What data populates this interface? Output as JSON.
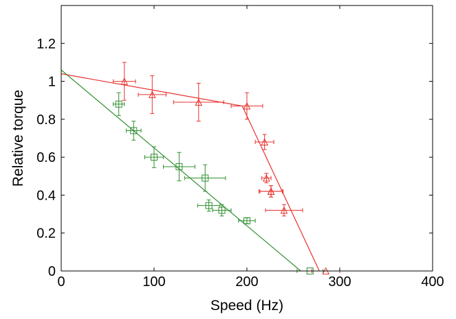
{
  "chart_data": {
    "type": "scatter",
    "title": "",
    "xlabel": "Speed (Hz)",
    "ylabel": "Relative torque",
    "xlim": [
      0,
      400
    ],
    "ylim": [
      0,
      1.4
    ],
    "x_ticks": [
      "0",
      "100",
      "200",
      "300",
      "400"
    ],
    "y_ticks": [
      "0",
      "0.2",
      "0.4",
      "0.6",
      "0.8",
      "1",
      "1.2"
    ],
    "grid": false,
    "series": [
      {
        "color": "#e8302c",
        "marker": "triangle",
        "points": [
          {
            "x": 68,
            "y": 1.0,
            "xerr": 12,
            "yerr": 0.1
          },
          {
            "x": 98,
            "y": 0.93,
            "xerr": 15,
            "yerr": 0.1
          },
          {
            "x": 148,
            "y": 0.89,
            "xerr": 27,
            "yerr": 0.1
          },
          {
            "x": 200,
            "y": 0.87,
            "xerr": 17,
            "yerr": 0.07
          },
          {
            "x": 219,
            "y": 0.68,
            "xerr": 10,
            "yerr": 0.04
          },
          {
            "x": 221,
            "y": 0.49,
            "xerr": 5,
            "yerr": 0.025
          },
          {
            "x": 226,
            "y": 0.42,
            "xerr": 13,
            "yerr": 0.03
          },
          {
            "x": 226,
            "y": 0.42,
            "xerr": 12,
            "yerr": 0.03
          },
          {
            "x": 240,
            "y": 0.32,
            "xerr": 20,
            "yerr": 0.03
          },
          {
            "x": 285,
            "y": 0.0,
            "xerr": 15,
            "yerr": 0.0
          }
        ],
        "fit_line": {
          "x": [
            0,
            195,
            278
          ],
          "y": [
            1.04,
            0.87,
            0.0
          ]
        }
      },
      {
        "color": "#2f8f2f",
        "marker": "square",
        "points": [
          {
            "x": 62,
            "y": 0.88,
            "xerr": 6,
            "yerr": 0.06
          },
          {
            "x": 78,
            "y": 0.74,
            "xerr": 8,
            "yerr": 0.05
          },
          {
            "x": 100,
            "y": 0.6,
            "xerr": 10,
            "yerr": 0.055
          },
          {
            "x": 127,
            "y": 0.55,
            "xerr": 17,
            "yerr": 0.075
          },
          {
            "x": 155,
            "y": 0.49,
            "xerr": 22,
            "yerr": 0.07
          },
          {
            "x": 159,
            "y": 0.345,
            "xerr": 12,
            "yerr": 0.03
          },
          {
            "x": 173,
            "y": 0.32,
            "xerr": 10,
            "yerr": 0.03
          },
          {
            "x": 200,
            "y": 0.265,
            "xerr": 9,
            "yerr": 0.015
          },
          {
            "x": 268,
            "y": 0.0,
            "xerr": 14,
            "yerr": 0.0
          }
        ],
        "fit_line": {
          "x": [
            0,
            258
          ],
          "y": [
            1.06,
            0.0
          ]
        }
      }
    ]
  }
}
